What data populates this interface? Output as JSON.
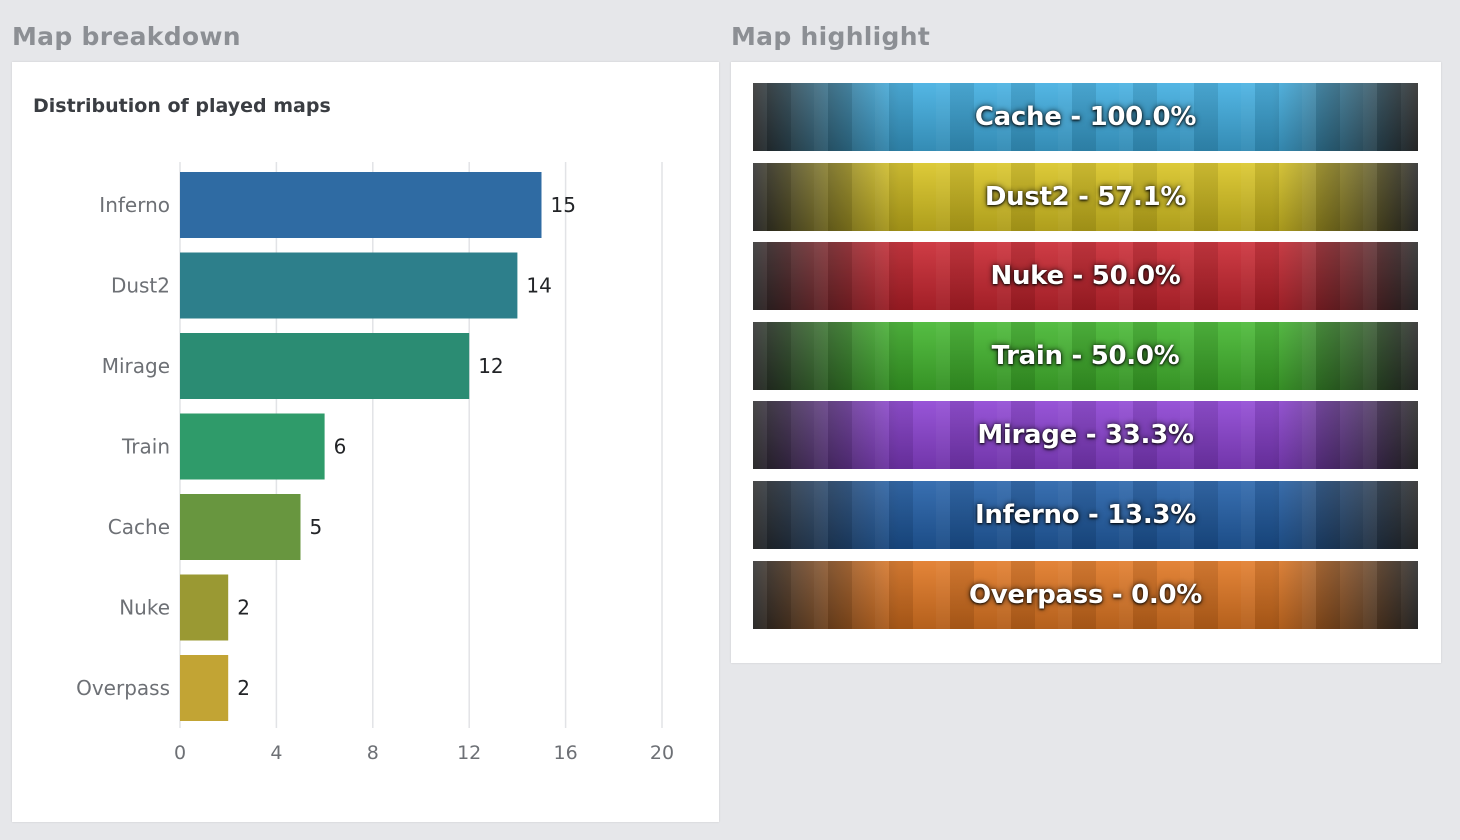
{
  "sections": {
    "breakdown_title": "Map breakdown",
    "highlight_title": "Map highlight"
  },
  "chart_data": {
    "type": "bar",
    "orientation": "horizontal",
    "title": "Distribution of played maps",
    "categories": [
      "Inferno",
      "Dust2",
      "Mirage",
      "Train",
      "Cache",
      "Nuke",
      "Overpass"
    ],
    "values": [
      15,
      14,
      12,
      6,
      5,
      2,
      2
    ],
    "colors": [
      "#2f6ba3",
      "#2d7f8b",
      "#2b8c73",
      "#2f9b6a",
      "#68963f",
      "#9a9933",
      "#c2a434"
    ],
    "xlim": [
      0,
      20
    ],
    "xticks": [
      0,
      4,
      8,
      12,
      16,
      20
    ],
    "grid": true,
    "data_labels": true,
    "xlabel": "",
    "ylabel": ""
  },
  "highlights": [
    {
      "label": "Cache - 100.0%",
      "color": "#3cace0"
    },
    {
      "label": "Dust2 - 57.1%",
      "color": "#d8c31e"
    },
    {
      "label": "Nuke - 50.0%",
      "color": "#c8222c"
    },
    {
      "label": "Train - 50.0%",
      "color": "#3fb52a"
    },
    {
      "label": "Mirage - 33.3%",
      "color": "#8a3ed2"
    },
    {
      "label": "Inferno - 13.3%",
      "color": "#1e5ca6"
    },
    {
      "label": "Overpass - 0.0%",
      "color": "#e0741e"
    }
  ]
}
